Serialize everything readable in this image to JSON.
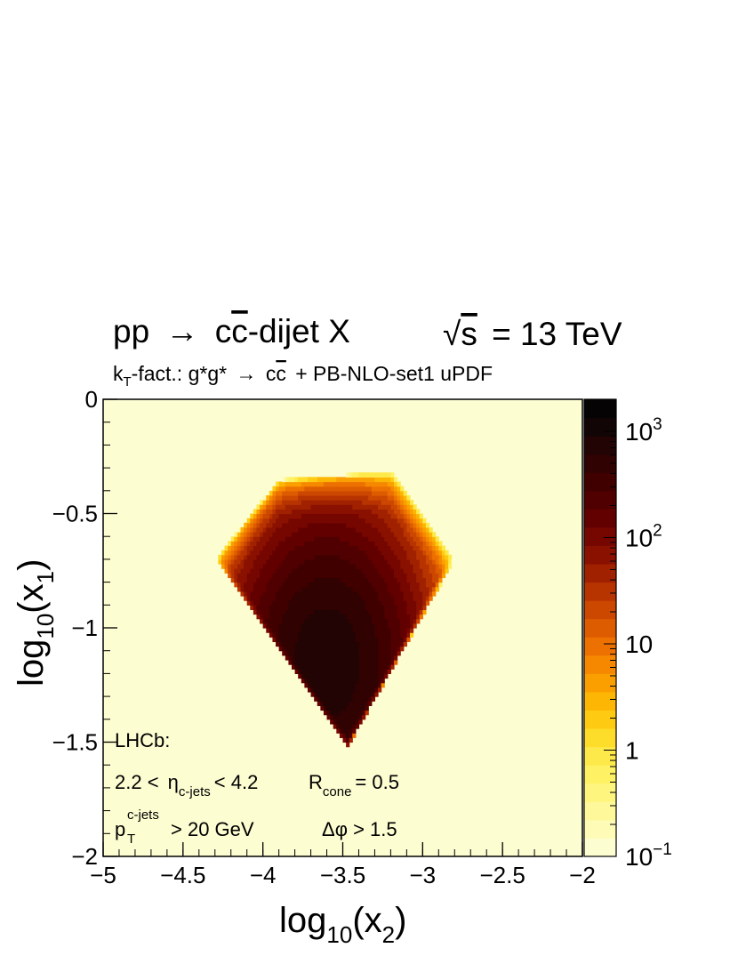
{
  "chart_data": {
    "type": "heatmap",
    "title_process": {
      "a": "pp",
      "arrow": "→",
      "c1": "c",
      "c2": "c",
      "b": "-dijet X"
    },
    "energy_label": {
      "root": "√",
      "s": "s",
      "rest": "= 13 TeV"
    },
    "subtitle": {
      "k": "k",
      "k_sub": "T",
      "rest1": "-fact.: g*g*",
      "arrow": "→",
      "c1": "c",
      "c2": "c",
      "rest2": "+ PB-NLO-set1 uPDF"
    },
    "xlabel": {
      "a": "log",
      "sub": "10",
      "b": "(x",
      "sub2": "2",
      "c": ")"
    },
    "ylabel": {
      "a": "log",
      "sub": "10",
      "b": "(x",
      "sub2": "1",
      "c": ")"
    },
    "xlim": [
      -5,
      -2
    ],
    "ylim": [
      -2,
      0
    ],
    "x_ticks": [
      -5,
      -4.5,
      -4,
      -3.5,
      -3,
      -2.5,
      -2
    ],
    "x_tick_labels": [
      "−5",
      "−4.5",
      "−4",
      "−3.5",
      "−3",
      "−2.5",
      "−2"
    ],
    "y_ticks": [
      0,
      -0.5,
      -1,
      -1.5,
      -2
    ],
    "y_tick_labels": [
      "0",
      "−0.5",
      "−1",
      "−1.5",
      "−2"
    ],
    "z_scale": "log",
    "zlim": [
      0.1,
      2000
    ],
    "colorbar_labels": [
      {
        "base": "10",
        "exp": "3",
        "value": 1000
      },
      {
        "base": "10",
        "exp": "2",
        "value": 100
      },
      {
        "base": "10",
        "exp": "",
        "value": 10
      },
      {
        "base": "1",
        "exp": "",
        "value": 1
      },
      {
        "base": "10",
        "exp": "−1",
        "value": 0.1
      }
    ],
    "colorbar_colors": [
      "#fdfdd2",
      "#fefbb7",
      "#fef89a",
      "#fef57f",
      "#fef163",
      "#fee94a",
      "#fedc2a",
      "#fecb12",
      "#fdb604",
      "#fb9f00",
      "#f68800",
      "#ed7100",
      "#de5c00",
      "#cc4700",
      "#b73300",
      "#a02100",
      "#8a1100",
      "#760600",
      "#620000",
      "#500000",
      "#400000",
      "#300202",
      "#220404",
      "#120505",
      "#050303"
    ],
    "background_value": 0.1,
    "density": {
      "description_free": true,
      "rows_y": [
        -0.3,
        -0.35,
        -0.4,
        -0.45,
        -0.5,
        -0.55,
        -0.6,
        -0.65,
        -0.7,
        -0.75,
        -0.8,
        -0.85,
        -0.9,
        -0.95,
        -1.0,
        -1.05,
        -1.1,
        -1.15,
        -1.2,
        -1.25,
        -1.3,
        -1.35,
        -1.4,
        -1.45,
        -1.5
      ],
      "x_bins": [
        -4.35,
        -4.3,
        -4.25,
        -4.2,
        -4.15,
        -4.1,
        -4.05,
        -4.0,
        -3.95,
        -3.9,
        -3.85,
        -3.8,
        -3.75,
        -3.7,
        -3.65,
        -3.6,
        -3.55,
        -3.5,
        -3.45,
        -3.4,
        -3.35,
        -3.3,
        -3.25,
        -3.2,
        -3.15,
        -3.1,
        -3.05,
        -3.0,
        -2.95,
        -2.9,
        -2.85,
        -2.8,
        -2.75,
        -2.7,
        -2.65
      ],
      "peak": {
        "x": -3.6,
        "y": -1.15,
        "value": 800
      }
    },
    "annotations": {
      "experiment": "LHCb:",
      "eta_a": "2.2 <",
      "eta_sym": "η",
      "eta_sub": "c-jets",
      "eta_b": "< 4.2",
      "r_sym": "R",
      "r_sub": "cone",
      "r_val": "= 0.5",
      "pt_sym": "p",
      "pt_sup": "c-jets",
      "pt_sub": "T",
      "pt_val": "> 20 GeV",
      "dphi": "Δφ > 1.5"
    }
  }
}
